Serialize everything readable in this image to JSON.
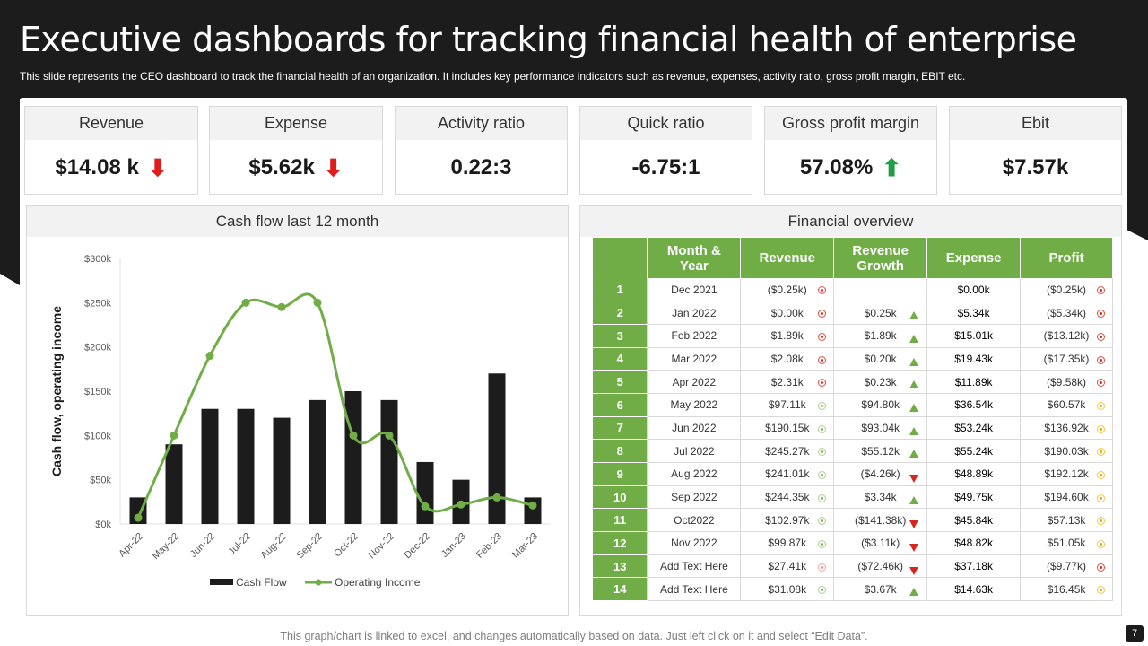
{
  "title": "Executive dashboards for tracking financial health of enterprise",
  "subtitle": "This slide represents the CEO dashboard to track the financial health of an organization. It includes key performance indicators such as revenue, expenses, activity ratio, gross profit margin, EBIT etc.",
  "kpis": [
    {
      "label": "Revenue",
      "value": "$14.08 k",
      "trend": "down"
    },
    {
      "label": "Expense",
      "value": "$5.62k",
      "trend": "down"
    },
    {
      "label": "Activity ratio",
      "value": "0.22:3",
      "trend": "none"
    },
    {
      "label": "Quick ratio",
      "value": "-6.75:1",
      "trend": "none"
    },
    {
      "label": "Gross profit margin",
      "value": "57.08%",
      "trend": "up"
    },
    {
      "label": "Ebit",
      "value": "$7.57k",
      "trend": "none"
    }
  ],
  "chart_data": {
    "type": "bar",
    "title": "Cash flow last 12 month",
    "xlabel": "",
    "ylabel": "Cash flow, operating income",
    "ylim": [
      0,
      300000
    ],
    "yticks": [
      "$0k",
      "$50k",
      "$100k",
      "$150k",
      "$200k",
      "$250k",
      "$300k"
    ],
    "categories": [
      "Apr-22",
      "May-22",
      "Jun-22",
      "Jul-22",
      "Aug-22",
      "Sep-22",
      "Oct-22",
      "Nov-22",
      "Dec-22",
      "Jan-23",
      "Feb-23",
      "Mar-23"
    ],
    "series": [
      {
        "name": "Cash Flow",
        "type": "bar",
        "color": "#1c1c1c",
        "values": [
          30000,
          90000,
          130000,
          130000,
          120000,
          140000,
          150000,
          140000,
          70000,
          50000,
          170000,
          30000
        ]
      },
      {
        "name": "Operating Income",
        "type": "line",
        "color": "#70ad47",
        "values": [
          7000,
          100000,
          190000,
          250000,
          245000,
          250000,
          100000,
          100000,
          20000,
          22000,
          30000,
          21000
        ]
      }
    ],
    "legend": "bottom"
  },
  "financial": {
    "title": "Financial overview",
    "headers": [
      "",
      "Month & Year",
      "Revenue",
      "Revenue Growth",
      "Expense",
      "Profit"
    ],
    "rows": [
      {
        "n": "1",
        "month": "Dec 2021",
        "rev": "($0.25k)",
        "revInd": "red",
        "growth": "",
        "growthTri": "",
        "exp": "$0.00k",
        "profit": "($0.25k)",
        "profitInd": "red"
      },
      {
        "n": "2",
        "month": "Jan 2022",
        "rev": "$0.00k",
        "revInd": "red",
        "growth": "$0.25k",
        "growthTri": "up",
        "exp": "$5.34k",
        "profit": "($5.34k)",
        "profitInd": "red"
      },
      {
        "n": "3",
        "month": "Feb 2022",
        "rev": "$1.89k",
        "revInd": "red",
        "growth": "$1.89k",
        "growthTri": "up",
        "exp": "$15.01k",
        "profit": "($13.12k)",
        "profitInd": "red"
      },
      {
        "n": "4",
        "month": "Mar 2022",
        "rev": "$2.08k",
        "revInd": "red",
        "growth": "$0.20k",
        "growthTri": "up",
        "exp": "$19.43k",
        "profit": "($17.35k)",
        "profitInd": "red"
      },
      {
        "n": "5",
        "month": "Apr 2022",
        "rev": "$2.31k",
        "revInd": "red",
        "growth": "$0.23k",
        "growthTri": "up",
        "exp": "$11.89k",
        "profit": "($9.58k)",
        "profitInd": "red"
      },
      {
        "n": "6",
        "month": "May 2022",
        "rev": "$97.11k",
        "revInd": "green",
        "growth": "$94.80k",
        "growthTri": "up",
        "exp": "$36.54k",
        "profit": "$60.57k",
        "profitInd": "yellow"
      },
      {
        "n": "7",
        "month": "Jun 2022",
        "rev": "$190.15k",
        "revInd": "green",
        "growth": "$93.04k",
        "growthTri": "up",
        "exp": "$53.24k",
        "profit": "$136.92k",
        "profitInd": "yellow"
      },
      {
        "n": "8",
        "month": "Jul 2022",
        "rev": "$245.27k",
        "revInd": "green",
        "growth": "$55.12k",
        "growthTri": "up",
        "exp": "$55.24k",
        "profit": "$190.03k",
        "profitInd": "yellow"
      },
      {
        "n": "9",
        "month": "Aug 2022",
        "rev": "$241.01k",
        "revInd": "green",
        "growth": "($4.26k)",
        "growthTri": "down",
        "exp": "$48.89k",
        "profit": "$192.12k",
        "profitInd": "yellow"
      },
      {
        "n": "10",
        "month": "Sep 2022",
        "rev": "$244.35k",
        "revInd": "green",
        "growth": "$3.34k",
        "growthTri": "up",
        "exp": "$49.75k",
        "profit": "$194.60k",
        "profitInd": "yellow"
      },
      {
        "n": "11",
        "month": "Oct2022",
        "rev": "$102.97k",
        "revInd": "green",
        "growth": "($141.38k)",
        "growthTri": "down",
        "exp": "$45.84k",
        "profit": "$57.13k",
        "profitInd": "yellow"
      },
      {
        "n": "12",
        "month": "Nov 2022",
        "rev": "$99.87k",
        "revInd": "green",
        "growth": "($3.11k)",
        "growthTri": "down",
        "exp": "$48.82k",
        "profit": "$51.05k",
        "profitInd": "yellow"
      },
      {
        "n": "13",
        "month": "Add Text Here",
        "rev": "$27.41k",
        "revInd": "pink",
        "growth": "($72.46k)",
        "growthTri": "down",
        "exp": "$37.18k",
        "profit": "($9.77k)",
        "profitInd": "red"
      },
      {
        "n": "14",
        "month": "Add Text Here",
        "rev": "$31.08k",
        "revInd": "green",
        "growth": "$3.67k",
        "growthTri": "up",
        "exp": "$14.63k",
        "profit": "$16.45k",
        "profitInd": "yellow"
      }
    ]
  },
  "footer": "This graph/chart is linked to excel, and changes automatically based on data. Just left click on it and select “Edit Data”.",
  "page_number": "7"
}
